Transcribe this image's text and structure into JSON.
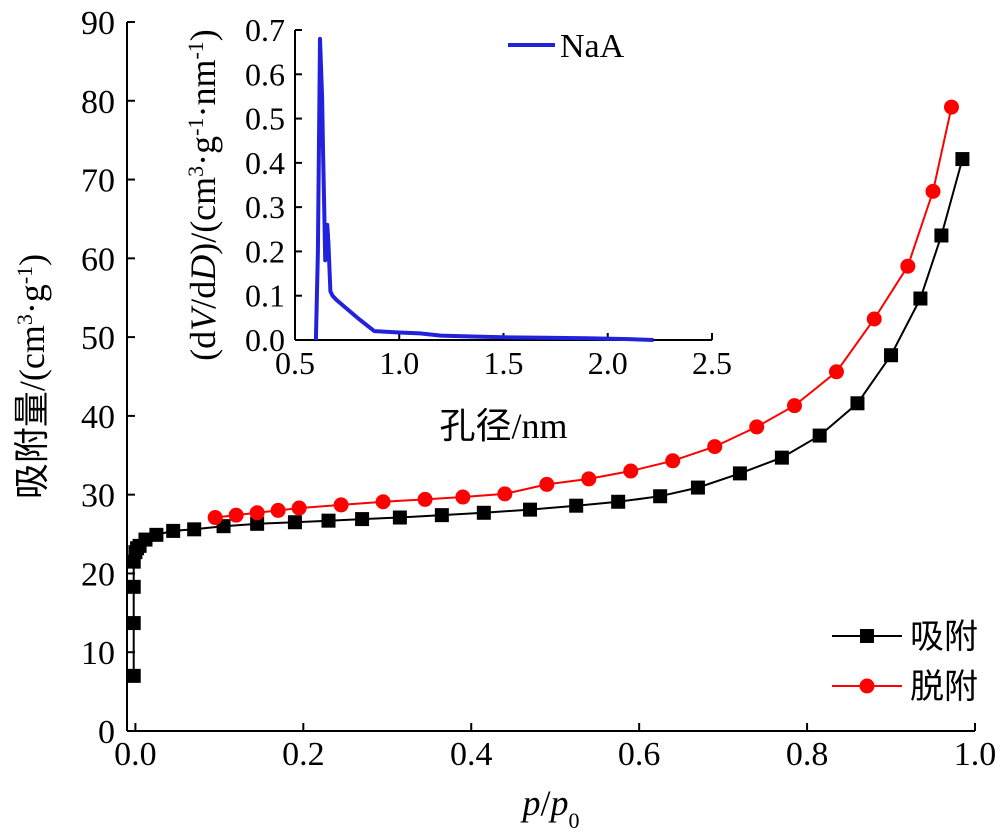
{
  "chart_data": [
    {
      "type": "line",
      "xlabel": {
        "parts": [
          {
            "t": "p",
            "italic": true
          },
          {
            "t": "/"
          },
          {
            "t": "p",
            "italic": true
          },
          {
            "t": "0",
            "sub": true
          }
        ]
      },
      "ylabel": {
        "parts": [
          {
            "t": "吸附量/(cm"
          },
          {
            "t": "3",
            "sup": true
          },
          {
            "t": "·g"
          },
          {
            "t": "-1",
            "sup": true
          },
          {
            "t": ")"
          }
        ]
      },
      "xlim": [
        -0.01,
        1.0
      ],
      "ylim": [
        0,
        90
      ],
      "xticks": [
        0.0,
        0.2,
        0.4,
        0.6,
        0.8,
        1.0
      ],
      "xtick_labels": [
        "0.0",
        "0.2",
        "0.4",
        "0.6",
        "0.8",
        "1.0"
      ],
      "yticks": [
        0,
        10,
        20,
        30,
        40,
        50,
        60,
        70,
        80,
        90
      ],
      "ytick_labels": [
        "0",
        "10",
        "20",
        "30",
        "40",
        "50",
        "60",
        "70",
        "80",
        "90"
      ],
      "grid": false,
      "legend_position": "bottom-right",
      "series": [
        {
          "name": "吸附",
          "color": "#000000",
          "marker": "square",
          "x": [
            -0.002,
            -0.002,
            -0.002,
            -0.002,
            0.0,
            0.002,
            0.005,
            0.012,
            0.025,
            0.045,
            0.07,
            0.105,
            0.145,
            0.19,
            0.23,
            0.27,
            0.315,
            0.365,
            0.415,
            0.47,
            0.525,
            0.575,
            0.625,
            0.67,
            0.72,
            0.77,
            0.815,
            0.86,
            0.9,
            0.935,
            0.96,
            0.985
          ],
          "y": [
            7.0,
            13.7,
            18.3,
            21.5,
            22.7,
            23.2,
            23.5,
            24.3,
            24.9,
            25.4,
            25.6,
            26.0,
            26.3,
            26.5,
            26.7,
            26.9,
            27.1,
            27.4,
            27.7,
            28.1,
            28.6,
            29.1,
            29.8,
            30.9,
            32.7,
            34.7,
            37.5,
            41.6,
            47.7,
            54.9,
            62.9,
            72.6
          ],
          "marker_from": 0
        },
        {
          "name": "脱附",
          "color": "#ff0000",
          "marker": "circle",
          "x": [
            0.095,
            0.12,
            0.145,
            0.17,
            0.195,
            0.245,
            0.295,
            0.345,
            0.39,
            0.44,
            0.49,
            0.54,
            0.59,
            0.64,
            0.69,
            0.74,
            0.785,
            0.835,
            0.88,
            0.92,
            0.95,
            0.972
          ],
          "y": [
            27.1,
            27.4,
            27.7,
            28.0,
            28.3,
            28.7,
            29.1,
            29.4,
            29.7,
            30.1,
            31.3,
            32.0,
            33.0,
            34.3,
            36.1,
            38.6,
            41.3,
            45.6,
            52.3,
            59.0,
            68.5,
            79.2
          ]
        }
      ]
    },
    {
      "type": "line",
      "inset": true,
      "xlabel": {
        "parts": [
          {
            "t": "孔径/nm"
          }
        ]
      },
      "ylabel": {
        "parts": [
          {
            "t": "(d"
          },
          {
            "t": "V",
            "italic": true
          },
          {
            "t": "/d"
          },
          {
            "t": "D",
            "italic": true
          },
          {
            "t": ")/(cm"
          },
          {
            "t": "3",
            "sup": true
          },
          {
            "t": "·g"
          },
          {
            "t": "-1",
            "sup": true
          },
          {
            "t": "·nm"
          },
          {
            "t": "-1",
            "sup": true
          },
          {
            "t": ")"
          }
        ]
      },
      "xlim": [
        0.5,
        2.5
      ],
      "ylim": [
        0,
        0.7
      ],
      "xticks": [
        0.5,
        1.0,
        1.5,
        2.0,
        2.5
      ],
      "xtick_labels": [
        "0.5",
        "1.0",
        "1.5",
        "2.0",
        "2.5"
      ],
      "yticks": [
        0.0,
        0.1,
        0.2,
        0.3,
        0.4,
        0.5,
        0.6,
        0.7
      ],
      "ytick_labels": [
        "0.0",
        "0.1",
        "0.2",
        "0.3",
        "0.4",
        "0.5",
        "0.6",
        "0.7"
      ],
      "grid": false,
      "legend_position": "top-right",
      "series": [
        {
          "name": "NaA",
          "color": "#2222dd",
          "x": [
            0.6,
            0.61,
            0.62,
            0.63,
            0.635,
            0.64,
            0.645,
            0.65,
            0.655,
            0.66,
            0.67,
            0.68,
            0.7,
            0.75,
            0.8,
            0.88,
            1.0,
            1.1,
            1.2,
            1.35,
            1.5,
            1.7,
            1.9,
            2.1,
            2.22
          ],
          "y": [
            0.0,
            0.2,
            0.68,
            0.55,
            0.42,
            0.3,
            0.18,
            0.23,
            0.26,
            0.22,
            0.11,
            0.1,
            0.09,
            0.07,
            0.05,
            0.02,
            0.017,
            0.015,
            0.01,
            0.008,
            0.006,
            0.005,
            0.004,
            0.002,
            0.0
          ]
        }
      ]
    }
  ]
}
